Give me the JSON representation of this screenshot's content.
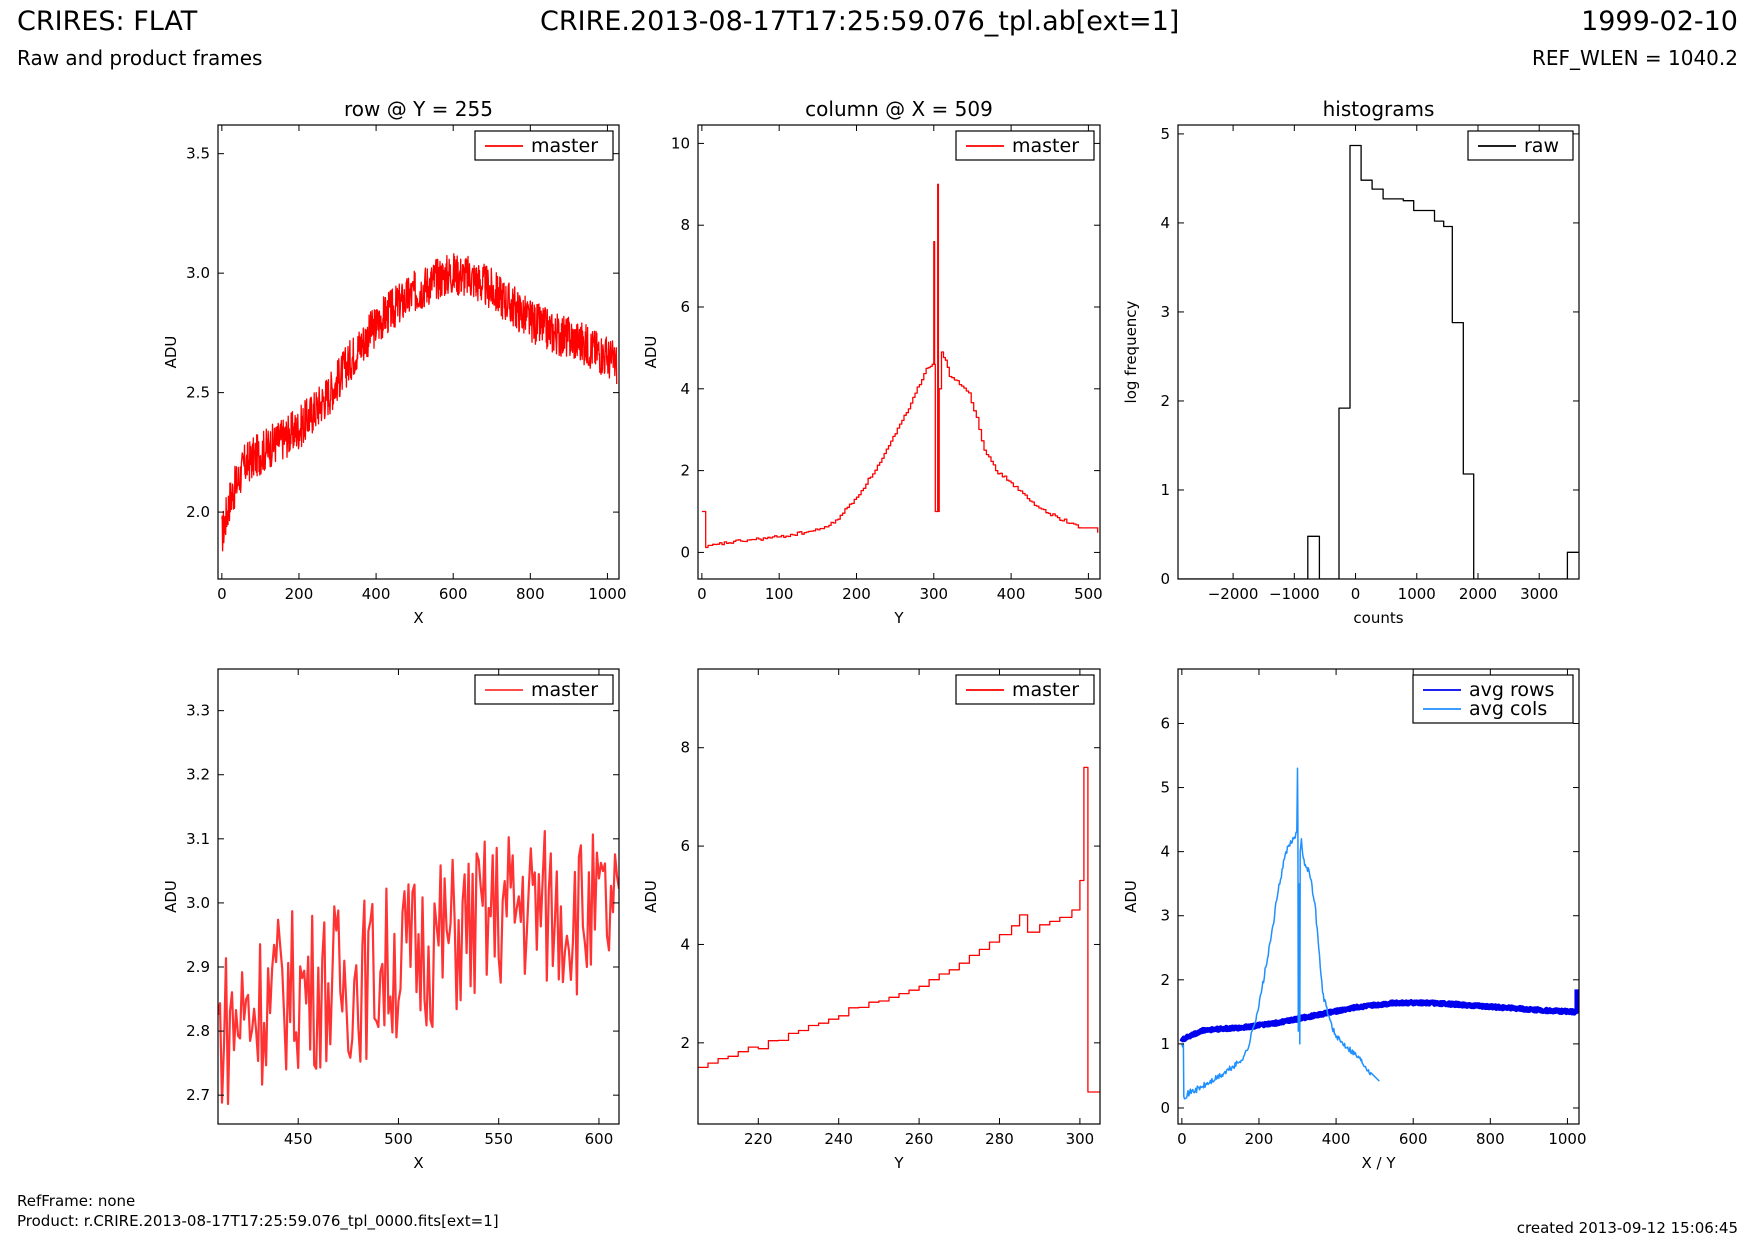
{
  "header": {
    "title_left": "CRIRES: FLAT",
    "subtitle_left": "Raw and product frames",
    "title_center": "CRIRE.2013-08-17T17:25:59.076_tpl.ab[ext=1]",
    "title_right": "1999-02-10",
    "subtitle_right": "REF_WLEN = 1040.2"
  },
  "footer": {
    "refframe": "RefFrame: none",
    "product": "Product: r.CRIRE.2013-08-17T17:25:59.076_tpl_0000.fits[ext=1]",
    "created": "created 2013-09-12 15:06:45"
  },
  "colors": {
    "red": "#ff0000",
    "red_light": "#ff3333",
    "black": "#000000",
    "blue": "#0000ee",
    "lightblue": "#1e90ff"
  },
  "chart_data": [
    {
      "id": "row",
      "type": "line",
      "title": "row @ Y = 255",
      "xlabel": "X",
      "ylabel": "ADU",
      "xlim": [
        -10,
        1030
      ],
      "ylim": [
        1.72,
        3.62
      ],
      "xticks": [
        0,
        200,
        400,
        600,
        800,
        1000
      ],
      "yticks": [
        2.0,
        2.5,
        3.0,
        3.5
      ],
      "legend": "top-right",
      "series": [
        {
          "name": "master",
          "color": "#ff0000",
          "step": false,
          "noise": 0.09,
          "dense": 1030,
          "x": [
            0,
            20,
            60,
            120,
            200,
            280,
            350,
            420,
            500,
            560,
            600,
            650,
            700,
            750,
            800,
            860,
            920,
            980,
            1024
          ],
          "y": [
            1.9,
            2.05,
            2.2,
            2.27,
            2.35,
            2.5,
            2.68,
            2.82,
            2.92,
            2.98,
            3.0,
            2.98,
            2.93,
            2.87,
            2.8,
            2.75,
            2.72,
            2.67,
            2.62
          ]
        }
      ]
    },
    {
      "id": "column",
      "type": "line",
      "title": "column @ X = 509",
      "xlabel": "Y",
      "ylabel": "ADU",
      "xlim": [
        -5,
        515
      ],
      "ylim": [
        -0.65,
        10.45
      ],
      "xticks": [
        0,
        100,
        200,
        300,
        400,
        500
      ],
      "yticks": [
        0,
        2,
        4,
        6,
        8,
        10
      ],
      "legend": "top-right",
      "series": [
        {
          "name": "master",
          "color": "#ff0000",
          "step": true,
          "noise": 0.04,
          "x": [
            0,
            4,
            5,
            20,
            50,
            100,
            150,
            170,
            200,
            230,
            250,
            270,
            290,
            298,
            300,
            301,
            302,
            304,
            305,
            306,
            307,
            310,
            315,
            320,
            330,
            345,
            355,
            365,
            380,
            400,
            430,
            460,
            490,
            512
          ],
          "y": [
            1.0,
            1.0,
            0.12,
            0.2,
            0.28,
            0.38,
            0.55,
            0.72,
            1.35,
            2.2,
            2.9,
            3.65,
            4.5,
            4.6,
            7.6,
            4.6,
            1.0,
            1.0,
            9.0,
            1.0,
            4.0,
            4.9,
            4.7,
            4.3,
            4.2,
            3.9,
            3.3,
            2.5,
            2.0,
            1.7,
            1.15,
            0.85,
            0.6,
            0.48
          ]
        }
      ]
    },
    {
      "id": "hist",
      "type": "histogram",
      "title": "histograms",
      "xlabel": "counts",
      "ylabel": "log frequency",
      "xlim": [
        -2900,
        3650
      ],
      "ylim": [
        0,
        5.1
      ],
      "xticks": [
        -2000,
        -1000,
        0,
        1000,
        2000,
        3000
      ],
      "yticks": [
        0,
        1,
        2,
        3,
        4,
        5
      ],
      "legend": "top-right",
      "series": [
        {
          "name": "raw",
          "color": "#000000",
          "step": true,
          "x": [
            -2900,
            -780,
            -780,
            -590,
            -590,
            -270,
            -270,
            -90,
            -90,
            90,
            90,
            270,
            270,
            450,
            450,
            780,
            780,
            950,
            950,
            1290,
            1290,
            1440,
            1440,
            1580,
            1580,
            1760,
            1760,
            1930,
            1930,
            3460,
            3460,
            3650
          ],
          "y": [
            0,
            0,
            0.48,
            0.48,
            0,
            0,
            1.92,
            1.92,
            4.87,
            4.87,
            4.48,
            4.48,
            4.38,
            4.38,
            4.27,
            4.27,
            4.25,
            4.25,
            4.14,
            4.14,
            4.02,
            4.02,
            3.96,
            3.96,
            2.88,
            2.88,
            1.18,
            1.18,
            0,
            0,
            0.3,
            0.3
          ]
        }
      ]
    },
    {
      "id": "row-zoom",
      "type": "line",
      "title": "",
      "xlabel": "X",
      "ylabel": "ADU",
      "xlim": [
        410,
        610
      ],
      "ylim": [
        2.655,
        3.365
      ],
      "xticks": [
        450,
        500,
        550,
        600
      ],
      "yticks": [
        2.7,
        2.8,
        2.9,
        3.0,
        3.1,
        3.2,
        3.3
      ],
      "legend": "top-right",
      "series": [
        {
          "name": "master",
          "color": "#ff3333",
          "step": false,
          "noise": 0.13,
          "dense": 200,
          "width": 2.2,
          "x": [
            410,
            440,
            480,
            520,
            560,
            600,
            610
          ],
          "y": [
            2.8,
            2.86,
            2.88,
            2.94,
            3.0,
            2.98,
            2.97
          ]
        }
      ]
    },
    {
      "id": "column-zoom",
      "type": "line",
      "title": "",
      "xlabel": "Y",
      "ylabel": "ADU",
      "xlim": [
        205,
        305
      ],
      "ylim": [
        0.35,
        9.6
      ],
      "xticks": [
        220,
        240,
        260,
        280,
        300
      ],
      "yticks": [
        2,
        4,
        6,
        8
      ],
      "legend": "top-right",
      "series": [
        {
          "name": "master",
          "color": "#ff0000",
          "step": true,
          "noise": 0.08,
          "x": [
            205,
            210,
            215,
            220,
            225,
            230,
            235,
            240,
            245,
            250,
            255,
            260,
            265,
            270,
            275,
            280,
            283,
            285,
            287,
            290,
            295,
            298,
            300,
            301,
            302,
            303,
            305
          ],
          "y": [
            1.5,
            1.68,
            1.82,
            1.88,
            2.05,
            2.25,
            2.4,
            2.55,
            2.72,
            2.85,
            3.0,
            3.15,
            3.4,
            3.62,
            3.9,
            4.2,
            4.38,
            4.6,
            4.25,
            4.4,
            4.55,
            4.7,
            5.3,
            7.6,
            1.0,
            1.0,
            1.0
          ]
        }
      ]
    },
    {
      "id": "avg",
      "type": "line",
      "title": "",
      "xlabel": "X / Y",
      "ylabel": "ADU",
      "xlim": [
        -10,
        1030
      ],
      "ylim": [
        -0.25,
        6.85
      ],
      "xticks": [
        0,
        200,
        400,
        600,
        800,
        1000
      ],
      "yticks": [
        0,
        1,
        2,
        3,
        4,
        5,
        6
      ],
      "legend": "top-right",
      "series": [
        {
          "name": "avg rows",
          "color": "#0000ee",
          "step": false,
          "noise": 0.025,
          "dense": 1030,
          "width": 4.5,
          "x": [
            0,
            30,
            60,
            150,
            250,
            350,
            450,
            550,
            650,
            750,
            850,
            950,
            1020,
            1024,
            1024
          ],
          "y": [
            1.06,
            1.15,
            1.22,
            1.25,
            1.33,
            1.45,
            1.57,
            1.64,
            1.64,
            1.6,
            1.56,
            1.52,
            1.5,
            1.5,
            1.85
          ]
        },
        {
          "name": "avg cols",
          "color": "#1e90ff",
          "step": false,
          "noise": 0.05,
          "width": 1.5,
          "x": [
            0,
            4,
            5,
            20,
            50,
            100,
            150,
            170,
            200,
            230,
            250,
            270,
            290,
            298,
            300,
            301,
            302,
            304,
            305,
            306,
            307,
            310,
            315,
            320,
            330,
            345,
            355,
            365,
            380,
            400,
            430,
            460,
            490,
            512
          ],
          "y": [
            1.0,
            1.0,
            0.18,
            0.24,
            0.32,
            0.5,
            0.72,
            0.9,
            1.6,
            2.6,
            3.4,
            4.0,
            4.2,
            4.3,
            5.3,
            4.4,
            1.2,
            3.0,
            3.5,
            1.0,
            4.0,
            4.2,
            3.9,
            3.8,
            3.7,
            3.2,
            2.5,
            1.8,
            1.45,
            1.1,
            0.95,
            0.78,
            0.55,
            0.42
          ]
        }
      ]
    }
  ]
}
